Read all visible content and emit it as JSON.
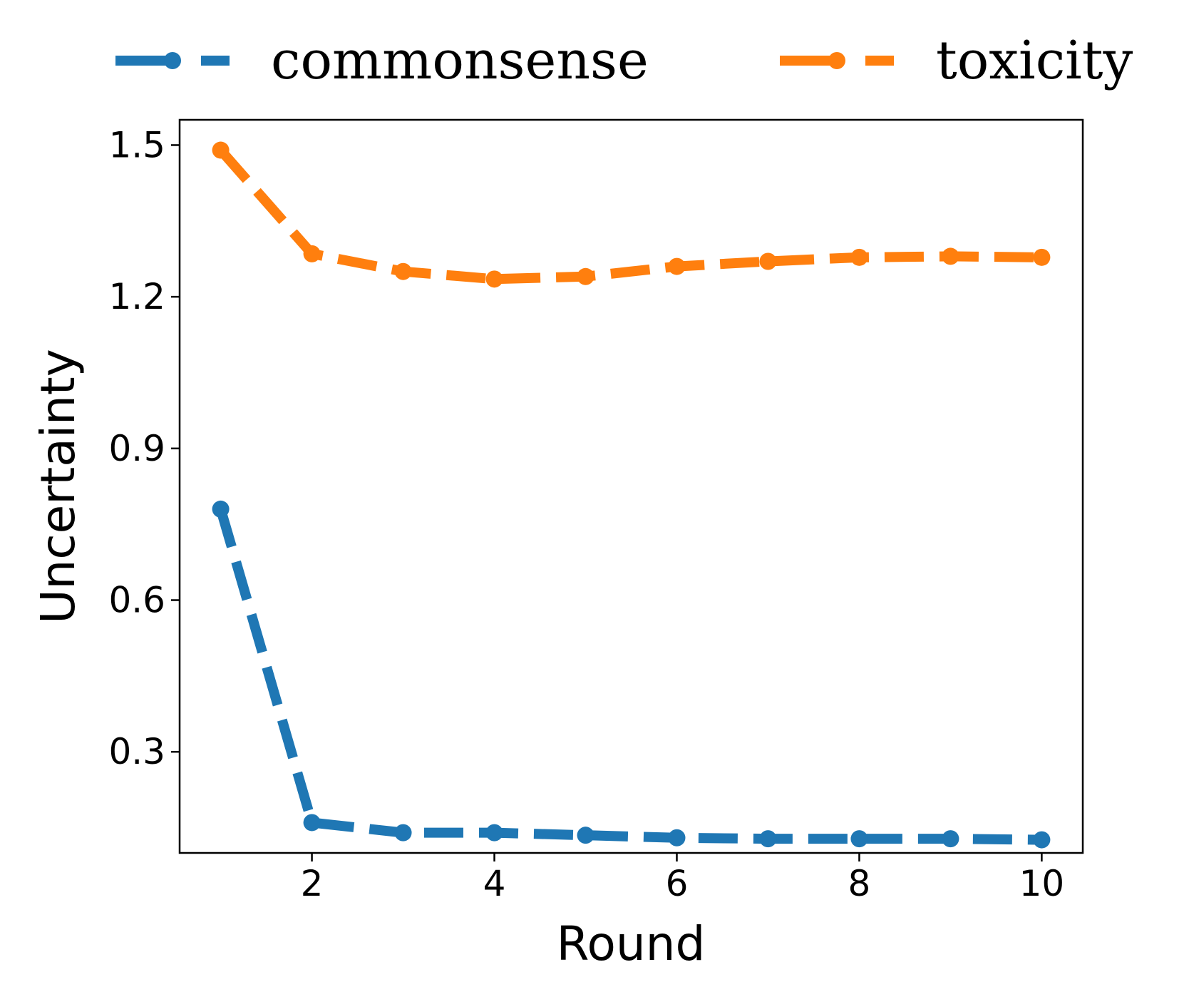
{
  "chart_data": {
    "type": "line",
    "title": "",
    "xlabel": "Round",
    "ylabel": "Uncertainty",
    "x": [
      1,
      2,
      3,
      4,
      5,
      6,
      7,
      8,
      9,
      10
    ],
    "xticks": [
      "2",
      "4",
      "6",
      "8",
      "10"
    ],
    "yticks": [
      "0.3",
      "0.6",
      "0.9",
      "1.2",
      "1.5"
    ],
    "xlim": [
      0.55,
      10.45
    ],
    "ylim": [
      0.1,
      1.55
    ],
    "grid": false,
    "legend_position": "top, outside plot",
    "series": [
      {
        "name": "commonsense",
        "color": "#1f77b4",
        "line_style": "dashed",
        "marker": "circle",
        "values": [
          0.78,
          0.16,
          0.14,
          0.14,
          0.135,
          0.13,
          0.128,
          0.128,
          0.128,
          0.126
        ]
      },
      {
        "name": "toxicity",
        "color": "#ff7f0e",
        "line_style": "dashed",
        "marker": "circle",
        "values": [
          1.49,
          1.285,
          1.25,
          1.235,
          1.24,
          1.26,
          1.27,
          1.278,
          1.28,
          1.278
        ]
      }
    ]
  }
}
